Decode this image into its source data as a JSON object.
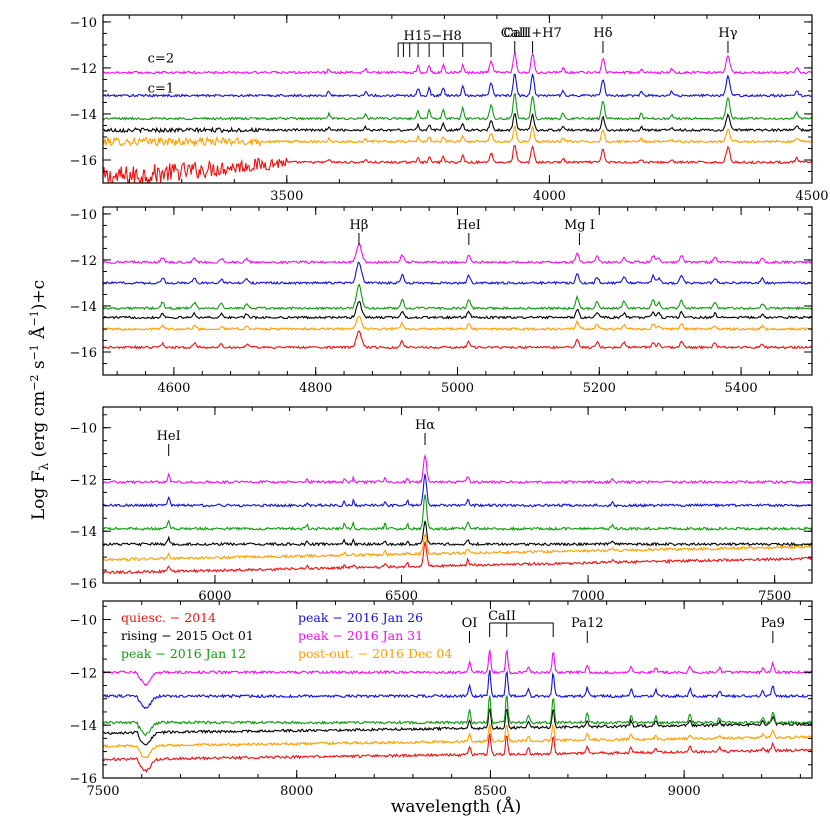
{
  "figure": {
    "ylabel": "Log Fλ (erg cm⁻² s⁻¹ Å⁻¹)+c",
    "xlabel": "wavelength (Å)"
  },
  "colors": {
    "quiescent": "#ee1111",
    "rising": "#000000",
    "peak_jan12": "#119911",
    "peak_jan26": "#1111dd",
    "peak_jan31": "#ee11ee",
    "post_outburst": "#ff9f00"
  },
  "chart_data": [
    {
      "type": "line",
      "panel": 1,
      "xlim": [
        3150,
        4500
      ],
      "ylim": [
        -17,
        -9.7
      ],
      "x_ticks": [
        3500,
        4000,
        4500
      ],
      "y_ticks": [
        -16,
        -14,
        -12,
        -10
      ],
      "series_levels": [
        {
          "series": "peak - 2016 Jan 31",
          "level": -12.2
        },
        {
          "series": "peak - 2016 Jan 26",
          "level": -13.2
        },
        {
          "series": "peak - 2016 Jan 12",
          "level": -14.2
        },
        {
          "series": "rising - 2015 Oct 01",
          "level": -14.7
        },
        {
          "series": "post-out. - 2016 Dec 04",
          "level": -15.2
        },
        {
          "series": "quiesc. - 2014",
          "level": -16.1
        }
      ],
      "offset_labels": [
        {
          "text": "c=2",
          "x": 3235,
          "y": -11.6,
          "color": "#ee11ee"
        },
        {
          "text": "c=1",
          "x": 3235,
          "y": -12.9,
          "color": "#1111dd"
        }
      ],
      "line_ids": [
        {
          "text": "H15−H8",
          "x": 3770
        },
        {
          "text": "CaII",
          "x": 3934
        },
        {
          "text": "CaII+H7",
          "x": 3968
        },
        {
          "text": "Hδ",
          "x": 4102
        },
        {
          "text": "Hγ",
          "x": 4340
        }
      ]
    },
    {
      "type": "line",
      "panel": 2,
      "xlim": [
        4500,
        5500
      ],
      "ylim": [
        -17,
        -9.7
      ],
      "x_ticks": [
        4600,
        4800,
        5000,
        5200,
        5400
      ],
      "y_ticks": [
        -16,
        -14,
        -12,
        -10
      ],
      "series_levels": [
        {
          "series": "peak - 2016 Jan 31",
          "level": -12.1
        },
        {
          "series": "peak - 2016 Jan 26",
          "level": -13.0
        },
        {
          "series": "peak - 2016 Jan 12",
          "level": -14.1
        },
        {
          "series": "rising - 2015 Oct 01",
          "level": -14.5
        },
        {
          "series": "post-out. - 2016 Dec 04",
          "level": -15.0
        },
        {
          "series": "quiesc. - 2014",
          "level": -15.8
        }
      ],
      "line_ids": [
        {
          "text": "Hβ",
          "x": 4861
        },
        {
          "text": "HeI",
          "x": 5016
        },
        {
          "text": "Mg I",
          "x": 5172
        }
      ]
    },
    {
      "type": "line",
      "panel": 3,
      "xlim": [
        5700,
        7600
      ],
      "ylim": [
        -16,
        -9.2
      ],
      "x_ticks": [
        6000,
        6500,
        7000,
        7500
      ],
      "y_ticks": [
        -16,
        -14,
        -12,
        -10
      ],
      "series_levels": [
        {
          "series": "peak - 2016 Jan 31",
          "level": -12.1
        },
        {
          "series": "peak - 2016 Jan 26",
          "level": -13.0
        },
        {
          "series": "peak - 2016 Jan 12",
          "level": -13.9
        },
        {
          "series": "rising - 2015 Oct 01",
          "level": -14.5
        },
        {
          "series": "post-out. - 2016 Dec 04",
          "level": -15.1
        },
        {
          "series": "quiesc. - 2014",
          "level": -15.6
        }
      ],
      "line_ids": [
        {
          "text": "HeI",
          "x": 5876
        },
        {
          "text": "Hα",
          "x": 6563
        }
      ]
    },
    {
      "type": "line",
      "panel": 4,
      "xlim": [
        7500,
        9330
      ],
      "ylim": [
        -16,
        -9.3
      ],
      "x_ticks": [
        7500,
        8000,
        8500,
        9000
      ],
      "y_ticks": [
        -16,
        -14,
        -12,
        -10
      ],
      "series_levels": [
        {
          "series": "peak - 2016 Jan 31",
          "level": -12.0
        },
        {
          "series": "peak - 2016 Jan 26",
          "level": -12.9
        },
        {
          "series": "peak - 2016 Jan 12",
          "level": -13.9
        },
        {
          "series": "rising - 2015 Oct 01",
          "level": -14.3
        },
        {
          "series": "post-out. - 2016 Dec 04",
          "level": -14.8
        },
        {
          "series": "quiesc. - 2014",
          "level": -15.3
        }
      ],
      "line_ids": [
        {
          "text": "OI",
          "x": 8446
        },
        {
          "text": "CaII",
          "x": 8542
        },
        {
          "text": "Pa12",
          "x": 8750
        },
        {
          "text": "Pa9",
          "x": 9229
        }
      ],
      "legend": [
        {
          "label": "quiesc. − 2014",
          "color": "#ee1111"
        },
        {
          "label": "rising − 2015 Oct 01",
          "color": "#000000"
        },
        {
          "label": "peak − 2016 Jan 12",
          "color": "#119911"
        },
        {
          "label": "peak − 2016 Jan 26",
          "color": "#1111dd"
        },
        {
          "label": "peak − 2016 Jan 31",
          "color": "#ee11ee"
        },
        {
          "label": "post-out. − 2016 Dec 04",
          "color": "#ff9f00"
        }
      ]
    }
  ]
}
